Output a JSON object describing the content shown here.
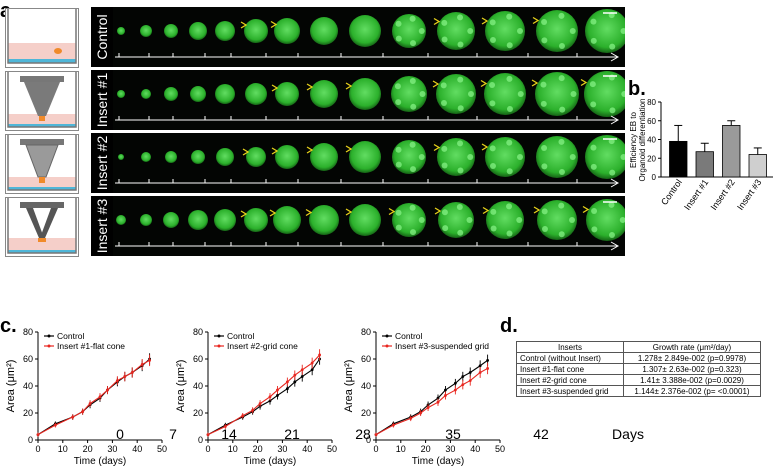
{
  "panels": {
    "a": "a.",
    "b": "b.",
    "c": "c.",
    "d": "d."
  },
  "panel_a": {
    "rows": [
      {
        "label": "Control"
      },
      {
        "label": "Insert #1"
      },
      {
        "label": "Insert #2"
      },
      {
        "label": "Insert #3"
      }
    ],
    "day_ticks": [
      "0",
      "7",
      "14",
      "21",
      "28",
      "35",
      "42"
    ],
    "days_label": "Days"
  },
  "chart_data": [
    {
      "type": "bar",
      "ylabel_line1": "Efficiency EB to",
      "ylabel_line2": "Organoid differentiation",
      "categories": [
        "Control",
        "Insert #1",
        "Insert #2",
        "Insert #3"
      ],
      "values": [
        38,
        27,
        55,
        24
      ],
      "errors": [
        17,
        9,
        5,
        7
      ],
      "colors": [
        "#000000",
        "#7a7a7a",
        "#9a9a9a",
        "#cfcfcf"
      ],
      "ylim": [
        0,
        80
      ],
      "yticks": [
        "0",
        "20",
        "40",
        "60",
        "80"
      ]
    },
    {
      "type": "line",
      "ylabel": "Area (μm²)",
      "xlabel": "Time (days)",
      "xlim": [
        0,
        50
      ],
      "ylim": [
        0,
        80
      ],
      "xticks": [
        "0",
        "10",
        "20",
        "30",
        "40",
        "50"
      ],
      "yticks": [
        "0",
        "20",
        "40",
        "60",
        "80"
      ],
      "series": [
        {
          "name": "Control",
          "color": "#000000",
          "x": [
            0,
            7,
            14,
            18,
            21,
            25,
            28,
            32,
            35,
            38,
            42,
            45
          ],
          "y": [
            4,
            12,
            17,
            21,
            26,
            31,
            37,
            43,
            47,
            50,
            55,
            60
          ]
        },
        {
          "name": "Insert #1-flat cone",
          "color": "#e8261f",
          "x": [
            0,
            7,
            14,
            18,
            21,
            25,
            28,
            32,
            35,
            38,
            42,
            45
          ],
          "y": [
            4,
            11,
            17,
            21,
            27,
            32,
            37,
            44,
            47,
            50,
            56,
            59
          ]
        }
      ]
    },
    {
      "type": "line",
      "ylabel": "Area (μm²)",
      "xlabel": "Time (days)",
      "xlim": [
        0,
        50
      ],
      "ylim": [
        0,
        80
      ],
      "xticks": [
        "0",
        "10",
        "20",
        "30",
        "40",
        "50"
      ],
      "yticks": [
        "0",
        "20",
        "40",
        "60",
        "80"
      ],
      "series": [
        {
          "name": "Control",
          "color": "#000000",
          "x": [
            0,
            7,
            14,
            18,
            21,
            25,
            28,
            32,
            35,
            38,
            42,
            45
          ],
          "y": [
            4,
            11,
            17,
            21,
            25,
            29,
            33,
            38,
            43,
            47,
            52,
            60
          ]
        },
        {
          "name": "Insert #2-grid cone",
          "color": "#e8261f",
          "x": [
            0,
            7,
            14,
            18,
            21,
            25,
            28,
            32,
            35,
            38,
            42,
            45
          ],
          "y": [
            4,
            10,
            18,
            22,
            27,
            32,
            37,
            43,
            48,
            52,
            57,
            63
          ]
        }
      ]
    },
    {
      "type": "line",
      "ylabel": "Area (μm²)",
      "xlabel": "Time (days)",
      "xlim": [
        0,
        50
      ],
      "ylim": [
        0,
        80
      ],
      "xticks": [
        "0",
        "10",
        "20",
        "30",
        "40",
        "50"
      ],
      "yticks": [
        "0",
        "20",
        "40",
        "60",
        "80"
      ],
      "series": [
        {
          "name": "Control",
          "color": "#000000",
          "x": [
            0,
            7,
            14,
            18,
            21,
            25,
            28,
            32,
            35,
            38,
            42,
            45
          ],
          "y": [
            4,
            12,
            17,
            21,
            26,
            31,
            37,
            42,
            47,
            50,
            55,
            59
          ]
        },
        {
          "name": "Insert #3-suspended grid",
          "color": "#e8261f",
          "x": [
            0,
            7,
            14,
            18,
            21,
            25,
            28,
            32,
            35,
            38,
            42,
            45
          ],
          "y": [
            4,
            11,
            16,
            20,
            24,
            28,
            33,
            37,
            41,
            44,
            50,
            53
          ]
        }
      ]
    }
  ],
  "table_d": {
    "headers": [
      "Inserts",
      "Growth rate (μm²/day)"
    ],
    "rows": [
      [
        "Control (without Insert)",
        "1.278± 2.849e-002 (p=0.9978)"
      ],
      [
        "Insert #1-flat cone",
        "1.307± 2.63e-002 (p=0.323)"
      ],
      [
        "Insert #2-grid cone",
        "1.41± 3.388e-002 (p=0.0029)"
      ],
      [
        "Insert #3-suspended grid",
        "1.144± 2.376e-002 (p= <0.0001)"
      ]
    ]
  },
  "colors": {
    "organoid_green": "#2fbf2f",
    "annotation_yellow": "#e8d21a",
    "series_red": "#e8261f"
  }
}
